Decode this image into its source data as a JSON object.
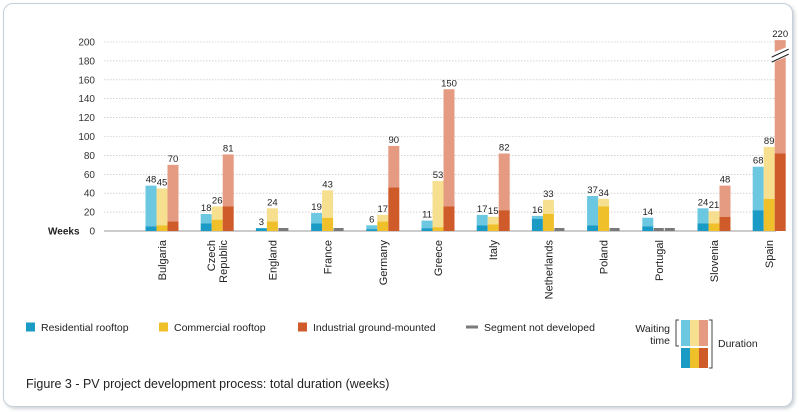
{
  "caption": "Figure 3 - PV project development process: total duration (weeks)",
  "colors": {
    "residential_dark": "#1a9bc6",
    "residential_light": "#6cc7e0",
    "commercial_dark": "#f0c02a",
    "commercial_light": "#f6df8e",
    "industrial_dark": "#cf5a2a",
    "industrial_light": "#e59a82",
    "not_developed": "#7a7a7a",
    "grid": "#b8b8b8"
  },
  "chart_data": {
    "type": "bar",
    "stacked": true,
    "ylabel": "Weeks",
    "ylim": [
      0,
      200
    ],
    "yticks": [
      0,
      20,
      40,
      60,
      80,
      100,
      120,
      140,
      160,
      180,
      200
    ],
    "grid": true,
    "axis_break": {
      "category": "Spain",
      "series": "Industrial ground-mounted",
      "shown_total": 220
    },
    "categories": [
      "Bulgaria",
      "Czech\nRepublic",
      "England",
      "France",
      "Germany",
      "Greece",
      "Italy",
      "Netherlands",
      "Poland",
      "Portugal",
      "Slovenia",
      "Spain"
    ],
    "series": [
      {
        "name": "Residential rooftop",
        "icon": "residential-bar",
        "duration": [
          5,
          8,
          3,
          8,
          2,
          3,
          6,
          13,
          6,
          5,
          8,
          22
        ],
        "total": [
          48,
          18,
          3,
          19,
          6,
          11,
          17,
          16,
          37,
          14,
          24,
          68
        ],
        "developed": [
          true,
          true,
          true,
          true,
          true,
          true,
          true,
          true,
          true,
          true,
          true,
          true
        ]
      },
      {
        "name": "Commercial rooftop",
        "icon": "commercial-bar",
        "duration": [
          6,
          12,
          10,
          14,
          10,
          4,
          7,
          18,
          26,
          null,
          8,
          34
        ],
        "total": [
          45,
          26,
          24,
          43,
          17,
          53,
          15,
          33,
          34,
          null,
          21,
          89
        ],
        "developed": [
          true,
          true,
          true,
          true,
          true,
          true,
          true,
          true,
          true,
          false,
          true,
          true
        ]
      },
      {
        "name": "Industrial ground-mounted",
        "icon": "industrial-bar",
        "duration": [
          10,
          26,
          null,
          null,
          46,
          26,
          22,
          null,
          null,
          null,
          15,
          82
        ],
        "total": [
          70,
          81,
          null,
          null,
          90,
          150,
          82,
          null,
          null,
          null,
          48,
          220
        ],
        "developed": [
          true,
          true,
          false,
          false,
          true,
          true,
          true,
          false,
          false,
          false,
          true,
          true
        ]
      }
    ],
    "legend_not_developed": "Segment not developed",
    "legend_placement": "bottom"
  },
  "legend_key": {
    "waiting_time": "Waiting\ntime",
    "duration": "Duration"
  }
}
